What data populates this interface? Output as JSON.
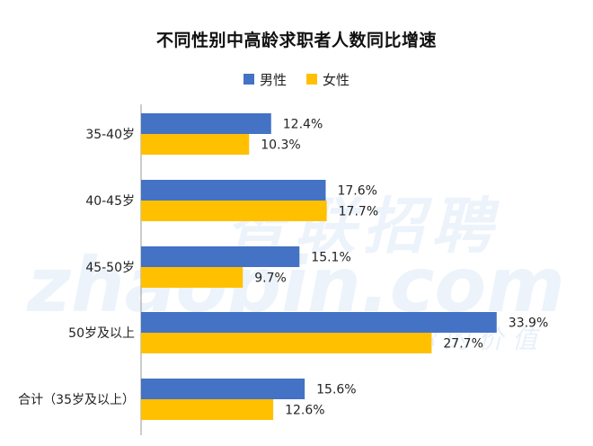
{
  "title": "不同性别中高龄求职者人数同比增速",
  "legend": {
    "male": "男性",
    "female": "女性"
  },
  "colors": {
    "male": "#4472c4",
    "female": "#ffc000"
  },
  "watermark": {
    "cn": "智联招聘",
    "en": "zhaopin.com",
    "slogan": "更懂你的价值"
  },
  "chart_data": {
    "type": "bar",
    "orientation": "horizontal",
    "categories": [
      "35-40岁",
      "40-45岁",
      "45-50岁",
      "50岁及以上",
      "合计（35岁及以上）"
    ],
    "series": [
      {
        "name": "男性",
        "values": [
          12.4,
          17.6,
          15.1,
          33.9,
          15.6
        ]
      },
      {
        "name": "女性",
        "values": [
          10.3,
          17.7,
          9.7,
          27.7,
          12.6
        ]
      }
    ],
    "data_labels": {
      "male": [
        "12.4%",
        "17.6%",
        "15.1%",
        "33.9%",
        "15.6%"
      ],
      "female": [
        "10.3%",
        "17.7%",
        "9.7%",
        "27.7%",
        "12.6%"
      ]
    },
    "title": "不同性别中高龄求职者人数同比增速",
    "legend_position": "top-center",
    "grid": false
  }
}
